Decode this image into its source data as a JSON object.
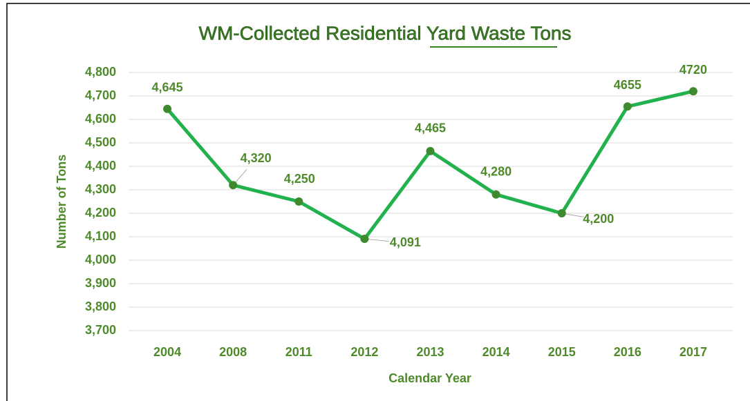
{
  "chart_data": {
    "type": "line",
    "title": "WM-Collected Residential Yard Waste Tons",
    "x_label": "Calendar Year",
    "y_label": "Number of Tons",
    "categories": [
      "2004",
      "2008",
      "2011",
      "2012",
      "2013",
      "2014",
      "2015",
      "2016",
      "2017"
    ],
    "values": [
      4645,
      4320,
      4250,
      4091,
      4465,
      4280,
      4200,
      4655,
      4720
    ],
    "value_labels": [
      "4,645",
      "4,320",
      "4,250",
      "4,091",
      "4,465",
      "4,280",
      "4,200",
      "4655",
      "4720"
    ],
    "color": "#22b14c",
    "marker_color": "#3f8a2f",
    "ylim": [
      3700,
      4800
    ],
    "yticks": [
      {
        "value": 3700,
        "label": "3,700"
      },
      {
        "value": 3800,
        "label": "3,800"
      },
      {
        "value": 3900,
        "label": "3,900"
      },
      {
        "value": 4000,
        "label": "4,000"
      },
      {
        "value": 4100,
        "label": "4,100"
      },
      {
        "value": 4200,
        "label": "4,200"
      },
      {
        "value": 4300,
        "label": "4,300"
      },
      {
        "value": 4400,
        "label": "4,400"
      },
      {
        "value": 4500,
        "label": "4,500"
      },
      {
        "value": 4600,
        "label": "4,600"
      },
      {
        "value": 4700,
        "label": "4,700"
      },
      {
        "value": 4800,
        "label": "4,800"
      }
    ],
    "grid": true
  }
}
